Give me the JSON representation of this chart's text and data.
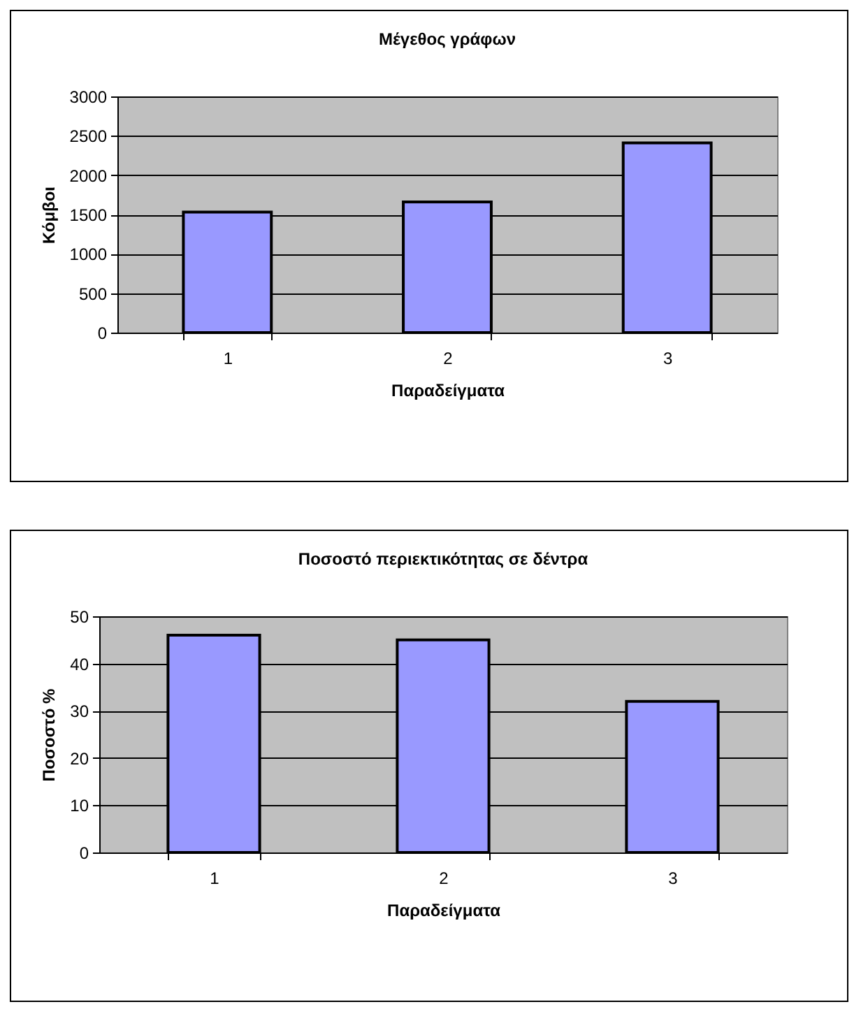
{
  "chart_data": [
    {
      "type": "bar",
      "title": "Μέγεθος γράφων",
      "xlabel": "Παραδείγματα",
      "ylabel": "Κόμβοι",
      "categories": [
        "1",
        "2",
        "3"
      ],
      "values": [
        1530,
        1660,
        2410
      ],
      "color": "#9999ff",
      "ylim": [
        0,
        3000
      ],
      "yticks": [
        0,
        500,
        1000,
        1500,
        2000,
        2500,
        3000
      ],
      "grid": "y"
    },
    {
      "type": "bar",
      "title": "Ποσοστό περιεκτικότητας σε δέντρα",
      "xlabel": "Παραδείγματα",
      "ylabel": "Ποσοστό %",
      "categories": [
        "1",
        "2",
        "3"
      ],
      "values": [
        46,
        45,
        32
      ],
      "color": "#9999ff",
      "ylim": [
        0,
        50
      ],
      "yticks": [
        0,
        10,
        20,
        30,
        40,
        50
      ],
      "grid": "y"
    }
  ]
}
